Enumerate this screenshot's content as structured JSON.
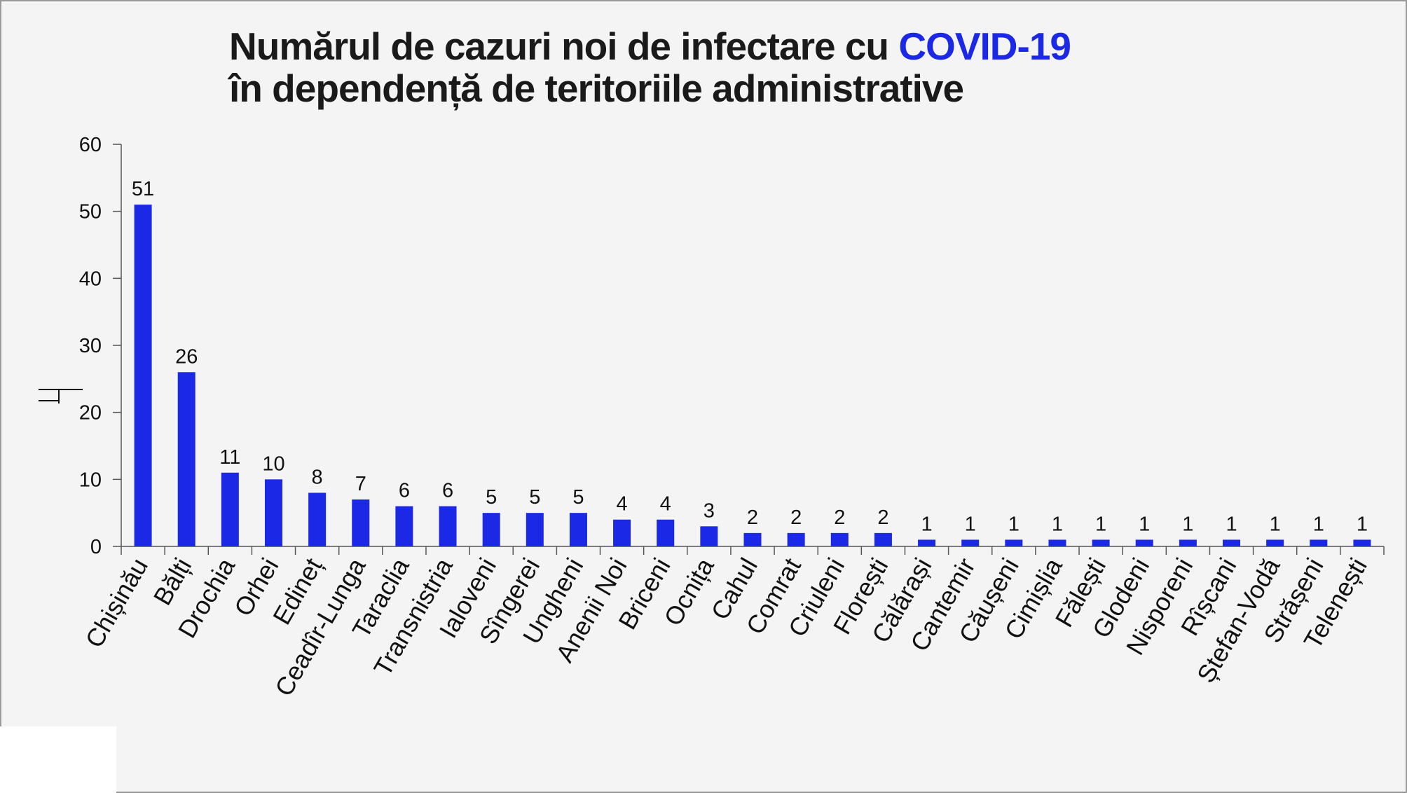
{
  "title": {
    "line1_before": "Numărul de cazuri noi de infectare cu ",
    "line1_highlight": "COVID-19",
    "line2": "în dependență de teritoriile administrative"
  },
  "colors": {
    "bar": "#1b28e6",
    "highlight": "#1b28e6",
    "text": "#1a1a1a",
    "background": "#f4f4f4"
  },
  "chart_data": {
    "type": "bar",
    "categories": [
      "Chișinău",
      "Bălți",
      "Drochia",
      "Orhei",
      "Edineț",
      "Ceadîr-Lunga",
      "Taraclia",
      "Transnistria",
      "Ialoveni",
      "Sîngerei",
      "Ungheni",
      "Anenii Noi",
      "Briceni",
      "Ocnița",
      "Cahul",
      "Comrat",
      "Criuleni",
      "Florești",
      "Călărași",
      "Cantemir",
      "Căușeni",
      "Cimișlia",
      "Fălești",
      "Glodeni",
      "Nisporeni",
      "Rîșcani",
      "Ștefan-Vodă",
      "Strășeni",
      "Telenești"
    ],
    "values": [
      51,
      26,
      11,
      10,
      8,
      7,
      6,
      6,
      5,
      5,
      5,
      4,
      4,
      3,
      2,
      2,
      2,
      2,
      1,
      1,
      1,
      1,
      1,
      1,
      1,
      1,
      1,
      1,
      1
    ],
    "ylim": [
      0,
      60
    ],
    "yticks": [
      0,
      10,
      20,
      30,
      40,
      50,
      60
    ],
    "xlabel": "",
    "ylabel": "",
    "grid": false,
    "data_labels": true
  }
}
